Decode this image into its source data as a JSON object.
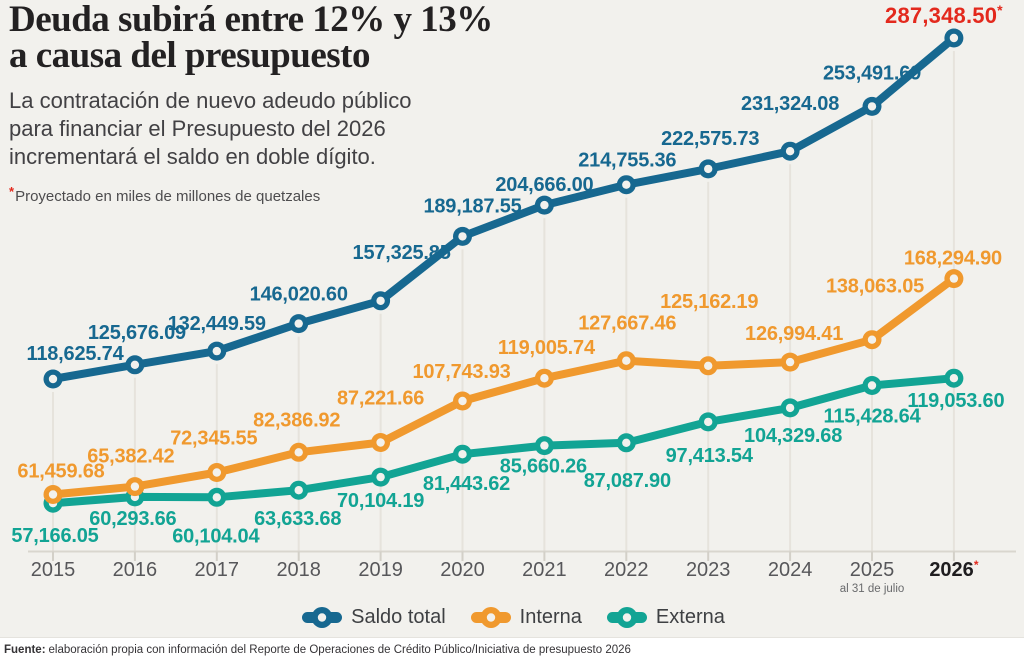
{
  "header": {
    "title_line1": "Deuda subirá entre 12% y 13%",
    "title_line2": "a causa del presupuesto",
    "subtitle_lines": [
      "La contratación de nuevo adeudo público",
      "para financiar el Presupuesto del 2026",
      "incrementará el saldo en doble dígito."
    ],
    "note_star": "*",
    "note_text": "Proyectado en miles de millones de quetzales"
  },
  "colors": {
    "background": "#f2f1ed",
    "saldo_total": "#176890",
    "interna": "#f0992e",
    "externa": "#12a494",
    "highlight_red": "#e3291d",
    "gridline": "#e6e3dc",
    "baseline": "#d9d6ce",
    "tick": "#d3d0c8",
    "axis_text": "#57575a",
    "axis_text_bold": "#1f1d1f",
    "axis_subnote": "#696a6c"
  },
  "chart_data": {
    "type": "line",
    "x": [
      2015,
      2016,
      2017,
      2018,
      2019,
      2020,
      2021,
      2022,
      2023,
      2024,
      2025,
      2026
    ],
    "x_tick_labels": [
      "2015",
      "2016",
      "2017",
      "2018",
      "2019",
      "2020",
      "2021",
      "2022",
      "2023",
      "2024",
      "2025",
      "2026"
    ],
    "projected_year": "2026",
    "projected_marker": "*",
    "x_note": {
      "under_year": "2025",
      "text": "al 31 de julio"
    },
    "grid": true,
    "legend_position": "bottom-center",
    "y_axis_visible": false,
    "series": [
      {
        "name": "Saldo total",
        "color": "#176890",
        "values": [
          118625.74,
          125676.09,
          132449.59,
          146020.6,
          157325.85,
          189187.55,
          204666.0,
          214755.36,
          222575.73,
          231324.08,
          253491.69,
          287348.5
        ],
        "labels_side": "above",
        "highlight_last": true,
        "label_dx": [
          22,
          2,
          0,
          0,
          21,
          10,
          0,
          1,
          2,
          0,
          0,
          -10
        ],
        "label_dy": [
          -19,
          -26,
          -21,
          -23,
          -42,
          -24,
          -14,
          -18,
          -24,
          -41,
          -27,
          -15
        ]
      },
      {
        "name": "Interna",
        "color": "#f0992e",
        "values": [
          61459.68,
          65382.42,
          72345.55,
          82386.92,
          87221.66,
          107743.93,
          119005.74,
          127667.46,
          125162.19,
          126994.41,
          138063.05,
          168294.9
        ],
        "labels_side": "above",
        "highlight_last": false,
        "label_dx": [
          8,
          -4,
          -3,
          -2,
          0,
          -1,
          2,
          1,
          1,
          4,
          3,
          -1
        ],
        "label_dy": [
          -17,
          -24,
          -28,
          -26,
          -38,
          -23,
          -24,
          -31,
          -58,
          -22,
          -47,
          -14
        ]
      },
      {
        "name": "Externa",
        "color": "#12a494",
        "values": [
          57166.05,
          60293.66,
          60104.04,
          63633.68,
          70104.19,
          81443.62,
          85660.26,
          87087.9,
          97413.54,
          104329.68,
          115428.64,
          119053.6
        ],
        "labels_side": "below",
        "highlight_last": false,
        "label_dx": [
          2,
          -2,
          -1,
          -1,
          0,
          4,
          -1,
          1,
          1,
          3,
          0,
          2
        ],
        "label_dy": [
          39,
          28,
          45,
          35,
          30,
          36,
          27,
          44,
          40,
          34,
          37,
          29
        ]
      }
    ]
  },
  "legend": {
    "items": [
      {
        "label": "Saldo total",
        "color": "#176890"
      },
      {
        "label": "Interna",
        "color": "#f0992e"
      },
      {
        "label": "Externa",
        "color": "#12a494"
      }
    ]
  },
  "footer": {
    "source_label": "Fuente:",
    "source_text": "elaboración propia con información del Reporte de Operaciones de Crédito Público/Iniciativa de presupuesto 2026"
  }
}
